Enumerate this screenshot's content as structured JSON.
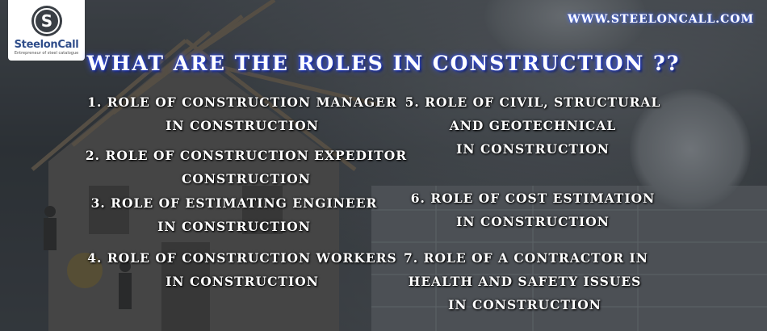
{
  "logo": {
    "name": "SteelonCall",
    "tagline": "Entrepreneur of steel catalogue"
  },
  "site_url": "WWW.STEELONCALL.COM",
  "title": "WHAT ARE THE ROLES IN CONSTRUCTION ??",
  "items": [
    {
      "lines": [
        "1. ROLE OF CONSTRUCTION MANAGER",
        "IN CONSTRUCTION"
      ]
    },
    {
      "lines": [
        "2. ROLE OF CONSTRUCTION EXPEDITOR",
        "CONSTRUCTION"
      ]
    },
    {
      "lines": [
        "3. ROLE OF ESTIMATING ENGINEER",
        "IN CONSTRUCTION"
      ]
    },
    {
      "lines": [
        "4. ROLE OF CONSTRUCTION WORKERS",
        "IN CONSTRUCTION"
      ]
    },
    {
      "lines": [
        "5. ROLE OF CIVIL, STRUCTURAL",
        "AND GEOTECHNICAL",
        "IN CONSTRUCTION"
      ]
    },
    {
      "lines": [
        "6.  ROLE OF COST ESTIMATION",
        "IN CONSTRUCTION"
      ]
    },
    {
      "lines": [
        "7. ROLE OF A CONTRACTOR IN",
        "HEALTH AND SAFETY ISSUES",
        "IN CONSTRUCTION"
      ]
    }
  ],
  "colors": {
    "title_glow": "#2040ff",
    "logo_blue": "#2f4d8a",
    "text": "#ffffff"
  }
}
